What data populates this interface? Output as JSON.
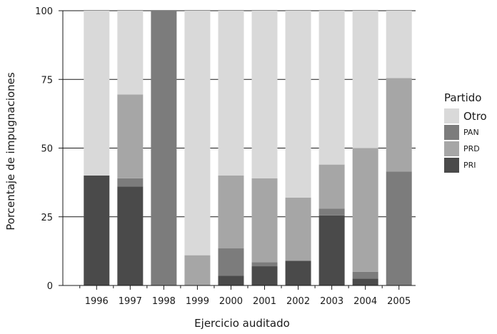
{
  "chart_data": {
    "type": "bar",
    "stacked": true,
    "xlabel": "Ejercicio auditado",
    "ylabel": "Porcentaje de impugnaciones",
    "ylim": [
      0,
      100
    ],
    "yticks": [
      "0",
      "25",
      "50",
      "75",
      "100"
    ],
    "grid": "horizontal",
    "legend_title": "Partido",
    "legend_position": "right",
    "categories": [
      "1996",
      "1997",
      "1998",
      "1999",
      "2000",
      "2001",
      "2002",
      "2003",
      "2004",
      "2005"
    ],
    "series": [
      {
        "name": "PRI",
        "color": "#4a4a4a",
        "values": [
          40,
          36,
          0,
          0,
          3.5,
          7,
          9,
          25.5,
          2.5,
          0
        ]
      },
      {
        "name": "PAN",
        "color": "#7c7c7c",
        "values": [
          0,
          3,
          100,
          0,
          10,
          1.5,
          0,
          2.5,
          2.5,
          41.5
        ]
      },
      {
        "name": "PRD",
        "color": "#a6a6a6",
        "values": [
          0,
          30.5,
          0,
          11,
          26.5,
          30.5,
          23,
          16,
          45,
          34
        ]
      },
      {
        "name": "Otro",
        "color": "#d9d9d9",
        "values": [
          60,
          30.5,
          0,
          89,
          60,
          61,
          68,
          56,
          50,
          24.5
        ]
      }
    ]
  },
  "legend": {
    "title": "Partido",
    "items": [
      {
        "label": "Otro",
        "color": "#d9d9d9"
      },
      {
        "label": "PAN",
        "color": "#7c7c7c"
      },
      {
        "label": "PRD",
        "color": "#a6a6a6"
      },
      {
        "label": "PRI",
        "color": "#4a4a4a"
      }
    ]
  }
}
